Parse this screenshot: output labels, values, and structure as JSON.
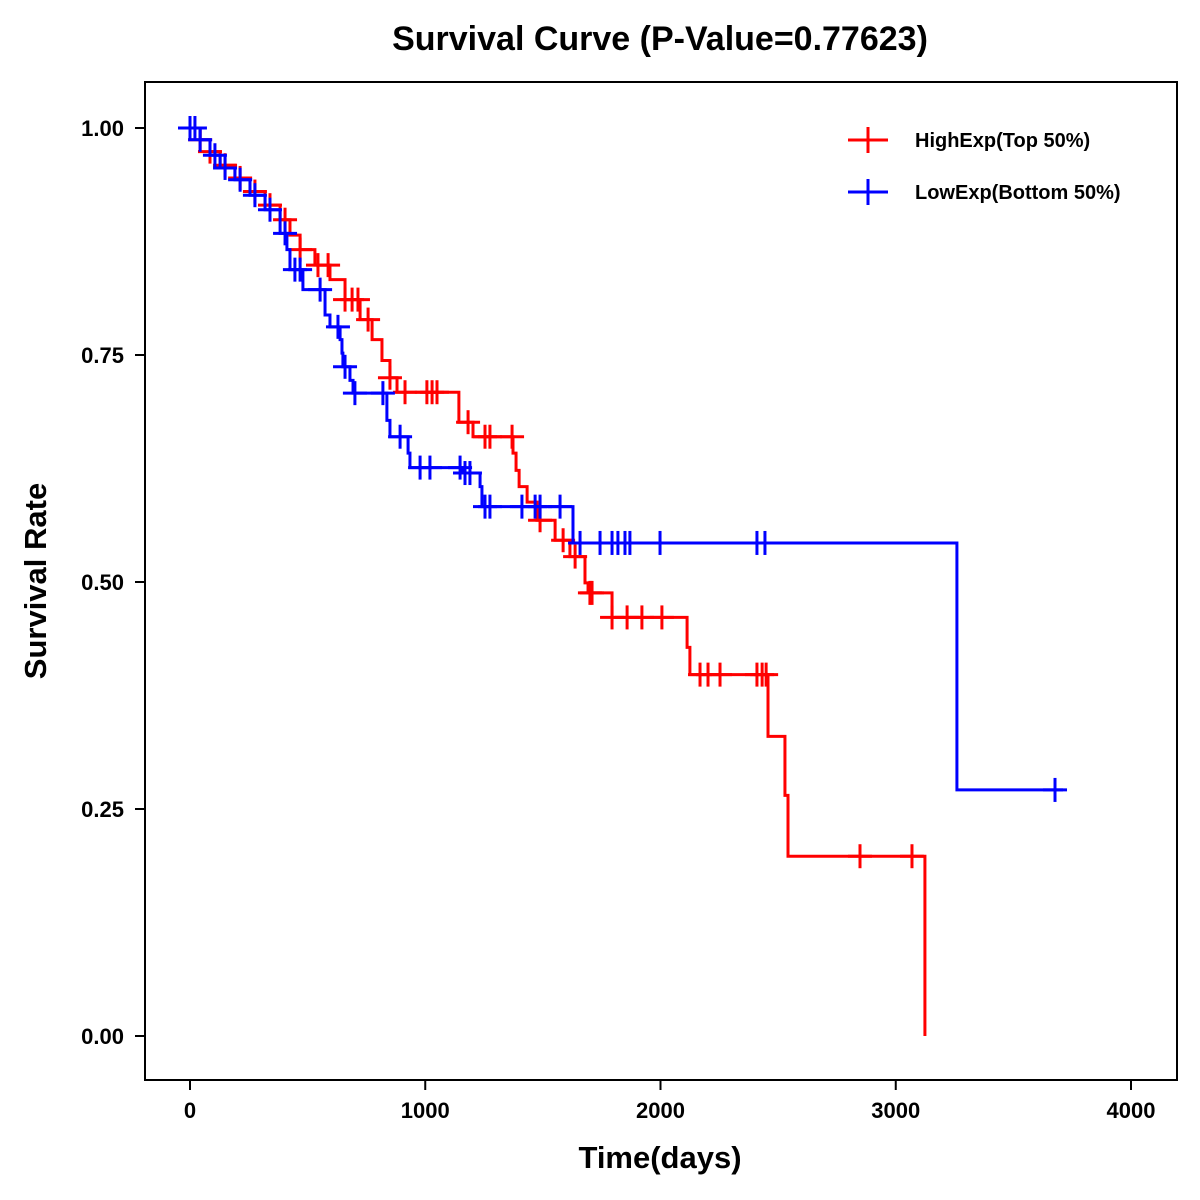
{
  "chart_data": {
    "type": "line",
    "subtype": "kaplan-meier step",
    "title": "Survival Curve (P-Value=0.77623)",
    "xlabel": "Time(days)",
    "ylabel": "Survival Rate",
    "xlim": [
      -200,
      4200
    ],
    "ylim": [
      -0.05,
      1.05
    ],
    "xticks": [
      0,
      1000,
      2000,
      3000,
      4000
    ],
    "xtick_labels": [
      "0",
      "1000",
      "2000",
      "3000",
      "4000"
    ],
    "yticks": [
      0,
      0.25,
      0.5,
      0.75,
      1.0
    ],
    "ytick_labels": [
      "0.00",
      "0.25",
      "0.50",
      "0.75",
      "1.00"
    ],
    "grid": false,
    "legend_position": "top-right",
    "series": [
      {
        "name": "HighExp(Top 50%)",
        "color": "#ff0000",
        "end_time": 3124,
        "steps": [
          [
            0,
            1
          ],
          [
            43,
            0.987
          ],
          [
            85,
            0.974
          ],
          [
            128,
            0.959
          ],
          [
            191,
            0.945
          ],
          [
            255,
            0.93
          ],
          [
            319,
            0.915
          ],
          [
            383,
            0.899
          ],
          [
            425,
            0.882
          ],
          [
            468,
            0.866
          ],
          [
            531,
            0.849
          ],
          [
            595,
            0.833
          ],
          [
            659,
            0.811
          ],
          [
            723,
            0.789
          ],
          [
            774,
            0.767
          ],
          [
            816,
            0.744
          ],
          [
            850,
            0.725
          ],
          [
            880,
            0.709
          ],
          [
            1143,
            0.676
          ],
          [
            1203,
            0.66
          ],
          [
            1373,
            0.642
          ],
          [
            1386,
            0.623
          ],
          [
            1399,
            0.605
          ],
          [
            1433,
            0.588
          ],
          [
            1475,
            0.568
          ],
          [
            1552,
            0.546
          ],
          [
            1615,
            0.528
          ],
          [
            1679,
            0.499
          ],
          [
            1692,
            0.488
          ],
          [
            1794,
            0.461
          ],
          [
            2113,
            0.428
          ],
          [
            2125,
            0.398
          ],
          [
            2457,
            0.33
          ],
          [
            2529,
            0.265
          ],
          [
            2542,
            0.198
          ],
          [
            3124,
            0
          ]
        ],
        "censored": [
          43,
          85,
          149,
          213,
          276,
          340,
          404,
          468,
          544,
          587,
          659,
          689,
          714,
          757,
          850,
          914,
          1007,
          1029,
          1050,
          1182,
          1254,
          1275,
          1369,
          1488,
          1586,
          1637,
          1700,
          1709,
          1794,
          1858,
          1921,
          2006,
          2168,
          2202,
          2253,
          2410,
          2432,
          2449,
          2848,
          3069
        ]
      },
      {
        "name": "LowExp(Bottom 50%)",
        "color": "#0000ff",
        "end_time": 3711,
        "steps": [
          [
            0,
            1
          ],
          [
            43,
            0.987
          ],
          [
            85,
            0.97
          ],
          [
            128,
            0.956
          ],
          [
            191,
            0.943
          ],
          [
            255,
            0.926
          ],
          [
            319,
            0.91
          ],
          [
            383,
            0.884
          ],
          [
            412,
            0.866
          ],
          [
            425,
            0.844
          ],
          [
            480,
            0.822
          ],
          [
            574,
            0.794
          ],
          [
            595,
            0.781
          ],
          [
            638,
            0.767
          ],
          [
            646,
            0.752
          ],
          [
            650,
            0.737
          ],
          [
            680,
            0.722
          ],
          [
            693,
            0.708
          ],
          [
            837,
            0.678
          ],
          [
            850,
            0.66
          ],
          [
            927,
            0.642
          ],
          [
            935,
            0.626
          ],
          [
            1160,
            0.62
          ],
          [
            1233,
            0.605
          ],
          [
            1241,
            0.583
          ],
          [
            1628,
            0.543
          ],
          [
            3260,
            0.271
          ]
        ],
        "censored": [
          0,
          21,
          43,
          106,
          149,
          213,
          276,
          340,
          404,
          446,
          468,
          553,
          629,
          659,
          701,
          820,
          893,
          978,
          1020,
          1148,
          1169,
          1190,
          1254,
          1275,
          1411,
          1467,
          1488,
          1573,
          1658,
          1743,
          1794,
          1819,
          1849,
          1870,
          1998,
          2410,
          2444,
          3677
        ]
      }
    ]
  }
}
